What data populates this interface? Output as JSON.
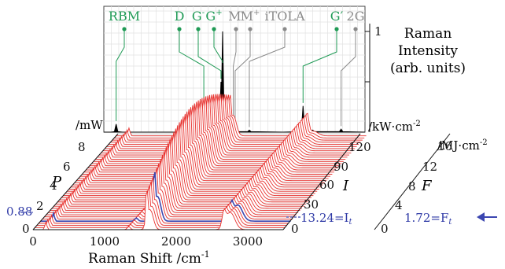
{
  "chart_data": {
    "type": "area",
    "x_axis": {
      "label": "Raman Shift /cm",
      "label_superscript": "-1",
      "ticks": [
        "0",
        "1000",
        "2000",
        "3000"
      ],
      "range": [
        0,
        3500
      ]
    },
    "p_axis": {
      "label": "P",
      "unit": "/mW",
      "ticks": [
        "0",
        "2",
        "4",
        "6",
        "8"
      ],
      "marked_value": "0.88"
    },
    "i_axis": {
      "label": "I",
      "unit": "/kW·cm",
      "unit_superscript": "-2",
      "ticks": [
        "0",
        "30",
        "60",
        "90",
        "120"
      ],
      "marked_label": "13.24=I",
      "marked_subscript": "t"
    },
    "f_axis": {
      "label": "F",
      "unit": "/MJ·cm",
      "unit_superscript": "-2",
      "ticks": [
        "0",
        "4",
        "8",
        "12",
        "16"
      ],
      "marked_label": "1.72=F",
      "marked_subscript": "t"
    },
    "intensity_axis": {
      "label_lines": [
        "Raman",
        "Intensity",
        "(arb. units)"
      ],
      "max_label": "1"
    },
    "peaks": [
      {
        "label": "RBM",
        "sup": "",
        "shift": 165,
        "kind": "primary"
      },
      {
        "label": "D",
        "sup": "",
        "shift": 1340,
        "kind": "primary"
      },
      {
        "label": "G",
        "sup": "-",
        "shift": 1570,
        "kind": "primary"
      },
      {
        "label": "G",
        "sup": "+",
        "shift": 1592,
        "kind": "primary"
      },
      {
        "label": "M",
        "sup": "-",
        "shift": 1735,
        "kind": "secondary"
      },
      {
        "label": "M",
        "sup": "+",
        "shift": 1760,
        "kind": "secondary"
      },
      {
        "label": "iTOLA",
        "sup": "",
        "shift": 1950,
        "kind": "secondary"
      },
      {
        "label": "G′",
        "sup": "",
        "shift": 2670,
        "kind": "primary"
      },
      {
        "label": "2G",
        "sup": "",
        "shift": 3180,
        "kind": "secondary"
      }
    ],
    "reference_spectrum": {
      "name": "black",
      "x": [
        100,
        165,
        250,
        700,
        1000,
        1340,
        1470,
        1570,
        1592,
        1650,
        1735,
        1760,
        1950,
        2400,
        2670,
        2800,
        3180,
        3500
      ],
      "y": [
        0.0,
        0.08,
        0.0,
        0.0,
        0.0,
        0.02,
        0.05,
        0.5,
        1.0,
        0.06,
        0.02,
        0.02,
        0.02,
        0.0,
        0.26,
        0.02,
        0.03,
        0.0
      ]
    },
    "series_colors": {
      "spectra": "#e8322f",
      "highlight": "#3b46b0",
      "reference": "#000000",
      "primary_peak": "#1f9a55",
      "secondary_peak": "#8a8a8a"
    },
    "waterfall": {
      "count": 45,
      "highlight_index": 4
    },
    "grid": true
  }
}
